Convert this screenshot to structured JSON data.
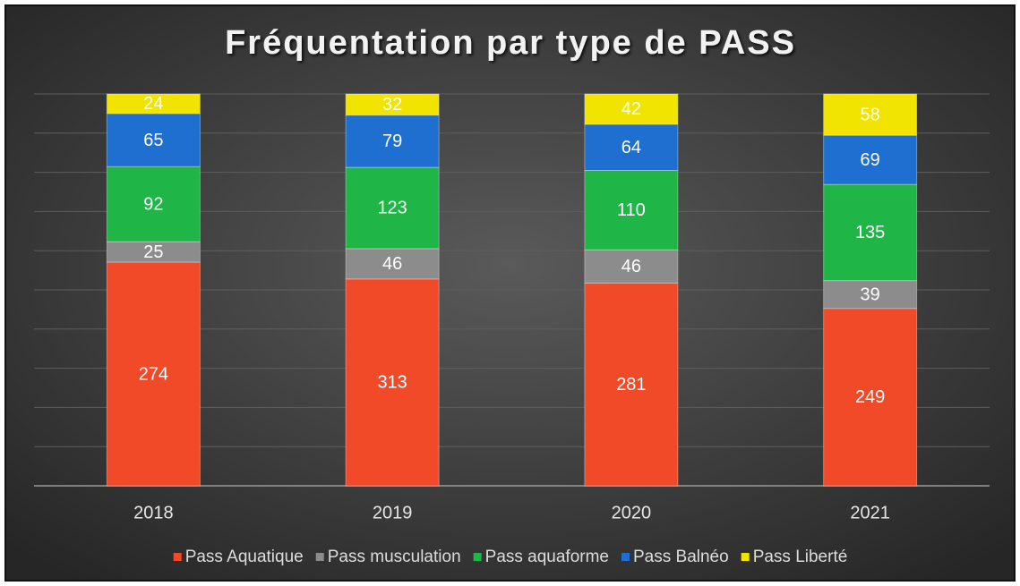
{
  "chart_data": {
    "type": "bar",
    "stacked": "percent",
    "title": "Fréquentation par type de PASS",
    "categories": [
      "2018",
      "2019",
      "2020",
      "2021"
    ],
    "series": [
      {
        "name": "Pass Aquatique",
        "color": "#f04a28",
        "values": [
          274,
          313,
          281,
          249
        ]
      },
      {
        "name": "Pass musculation",
        "color": "#8c8c8c",
        "values": [
          25,
          46,
          46,
          39
        ]
      },
      {
        "name": "Pass aquaforme",
        "color": "#1fb547",
        "values": [
          92,
          123,
          110,
          135
        ]
      },
      {
        "name": "Pass Balnéo",
        "color": "#1f6fd0",
        "values": [
          65,
          79,
          64,
          69
        ]
      },
      {
        "name": "Pass Liberté",
        "color": "#f0e400",
        "values": [
          24,
          32,
          42,
          58
        ]
      }
    ],
    "ylim": [
      0,
      100
    ],
    "yticks": [
      0,
      10,
      20,
      30,
      40,
      50,
      60,
      70,
      80,
      90,
      100
    ],
    "grid": true,
    "legend": "bottom"
  }
}
